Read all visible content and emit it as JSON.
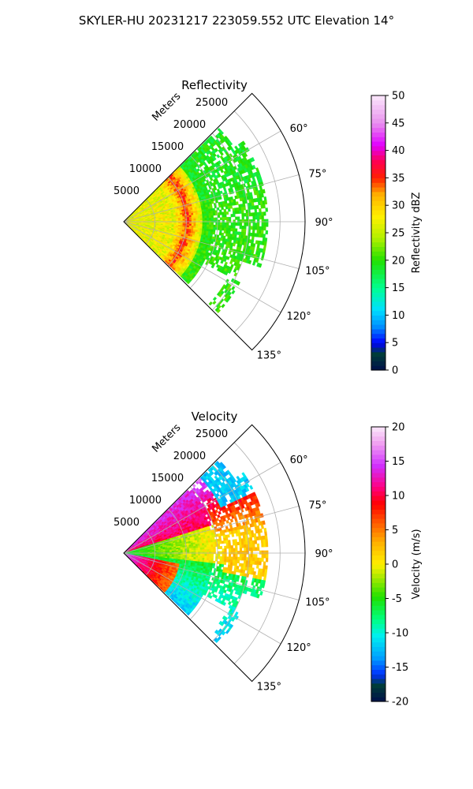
{
  "figure": {
    "title": "SKYLER-HU  20231217  223059.552 UTC Elevation 14°"
  },
  "chart_data": [
    {
      "type": "heatmap",
      "subtype": "polar-sector",
      "title": "Reflectivity",
      "radial_axis_label": "Meters",
      "radial_ticks": [
        "5000",
        "10000",
        "15000",
        "20000",
        "25000"
      ],
      "radial_tick_values": [
        5000,
        10000,
        15000,
        20000,
        25000
      ],
      "rlim": [
        0,
        29000
      ],
      "theta_ticks": [
        "60°",
        "75°",
        "90°",
        "105°",
        "120°",
        "135°"
      ],
      "theta_tick_values": [
        60,
        75,
        90,
        105,
        120,
        135
      ],
      "theta_range": [
        45,
        135
      ],
      "grid": true,
      "colorbar": {
        "label": "Reflectivity dBZ",
        "range": [
          0,
          50
        ],
        "ticks": [
          "0",
          "5",
          "10",
          "15",
          "20",
          "25",
          "30",
          "35",
          "40",
          "45",
          "50"
        ],
        "tick_values": [
          0,
          5,
          10,
          15,
          20,
          25,
          30,
          35,
          40,
          45,
          50
        ]
      },
      "field_summary": {
        "max_range_m": 23000,
        "near_range_dbz": 27,
        "ring_range_m": [
          8000,
          12000
        ],
        "ring_dbz": 35,
        "far_field_dbz": 20
      }
    },
    {
      "type": "heatmap",
      "subtype": "polar-sector",
      "title": "Velocity",
      "radial_axis_label": "Meters",
      "radial_ticks": [
        "5000",
        "10000",
        "15000",
        "20000",
        "25000"
      ],
      "radial_tick_values": [
        5000,
        10000,
        15000,
        20000,
        25000
      ],
      "rlim": [
        0,
        29000
      ],
      "theta_ticks": [
        "60°",
        "75°",
        "90°",
        "105°",
        "120°",
        "135°"
      ],
      "theta_tick_values": [
        60,
        75,
        90,
        105,
        120,
        135
      ],
      "theta_range": [
        45,
        135
      ],
      "grid": true,
      "colorbar": {
        "label": "Velocity (m/s)",
        "range": [
          -20,
          20
        ],
        "ticks": [
          "-20",
          "-15",
          "-10",
          "-5",
          "0",
          "5",
          "10",
          "15",
          "20"
        ],
        "tick_values": [
          -20,
          -15,
          -10,
          -5,
          0,
          5,
          10,
          15,
          20
        ]
      },
      "field_summary": {
        "max_range_m": 23000,
        "northeast_sector_ms": 10,
        "east_sector_ms": 2,
        "center_ms": -6,
        "southeast_sector_ms": -11,
        "near_southeast_ms": 15
      }
    }
  ]
}
